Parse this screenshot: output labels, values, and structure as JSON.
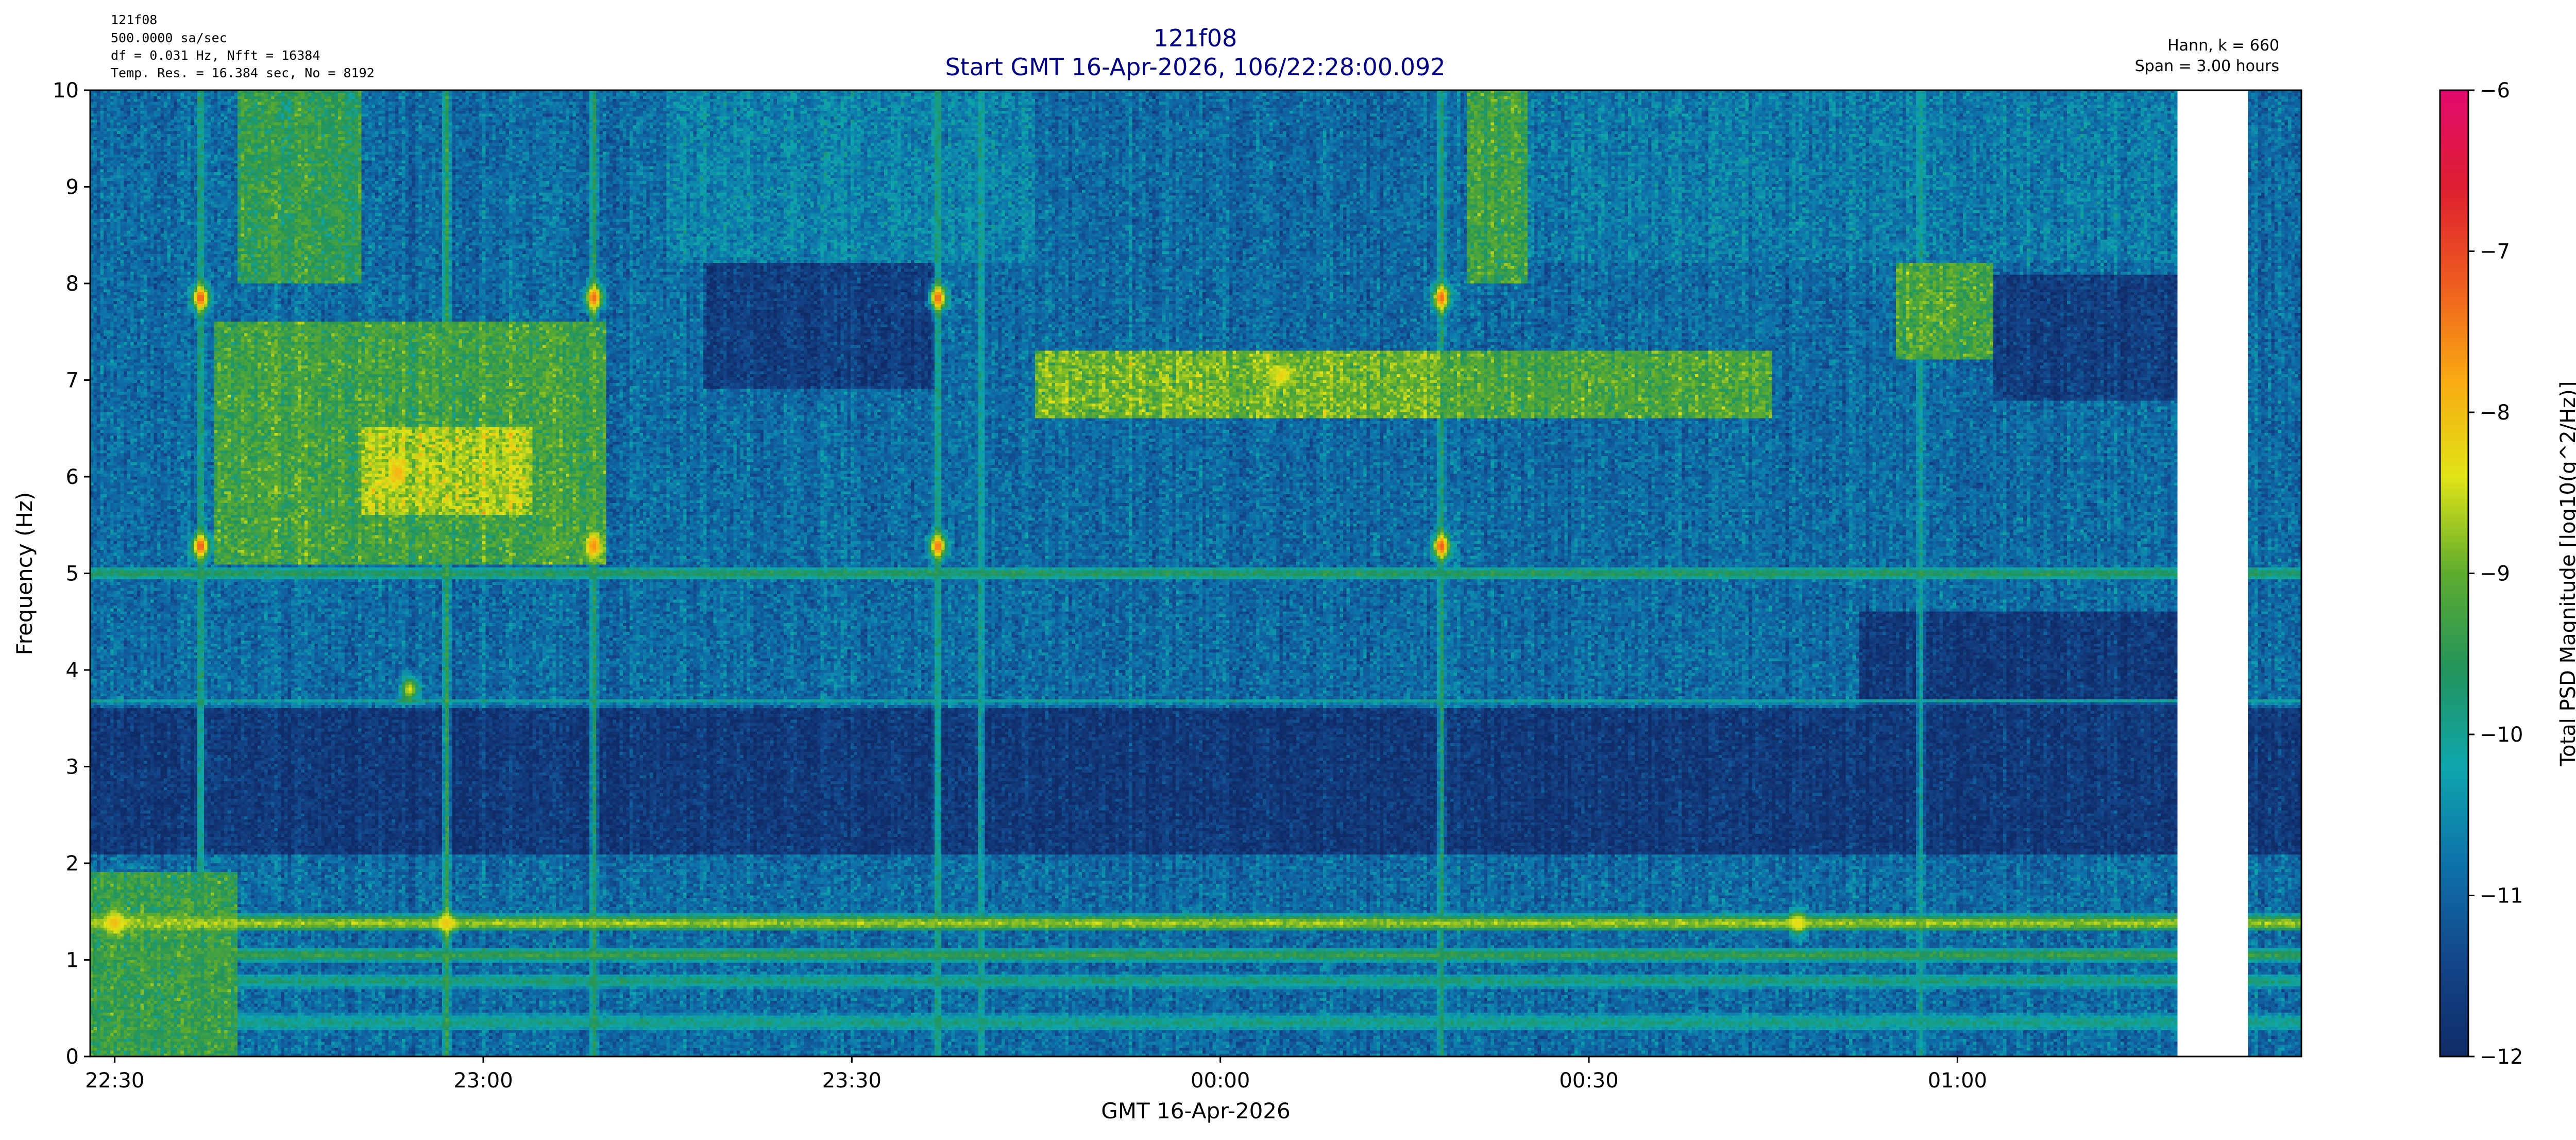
{
  "header": {
    "info_lines": [
      "121f08",
      "500.0000 sa/sec",
      "df = 0.031 Hz,  Nfft = 16384",
      "Temp. Res. = 16.384 sec, No = 8192"
    ],
    "title_line1": "121f08",
    "title_line2": "Start GMT 16-Apr-2026, 106/22:28:00.092",
    "right_line1": "Hann, k = 660",
    "right_line2": "Span = 3.00 hours"
  },
  "colors": {
    "title": "#000080",
    "text": "#000000",
    "gap": "#ffffff"
  },
  "chart_data": {
    "type": "heatmap",
    "title": "121f08",
    "subtitle": "Start GMT 16-Apr-2026, 106/22:28:00.092",
    "xlabel": "GMT 16-Apr-2026",
    "ylabel": "Frequency (Hz)",
    "x_ticks": [
      {
        "time": "22:30",
        "label": "22:30"
      },
      {
        "time": "23:00",
        "label": "23:00"
      },
      {
        "time": "23:30",
        "label": "23:30"
      },
      {
        "time": "00:00",
        "label": "00:00"
      },
      {
        "time": "00:30",
        "label": "00:30"
      },
      {
        "time": "01:00",
        "label": "01:00"
      }
    ],
    "xlim": [
      "22:28:00",
      "01:28:00"
    ],
    "ylim": [
      0,
      10
    ],
    "y_ticks": [
      0,
      1,
      2,
      3,
      4,
      5,
      6,
      7,
      8,
      9,
      10
    ],
    "colorbar": {
      "label": "Total PSD Magnitude [log10(g^2/Hz)]",
      "range": [
        -12,
        -6
      ],
      "ticks": [
        -12,
        -11,
        -10,
        -9,
        -8,
        -7,
        -6
      ]
    },
    "data_gap": {
      "start": "01:18:00",
      "end": "01:23:30"
    },
    "background_level": -10.9,
    "time_bins": 660,
    "freq_bins": 330,
    "seed": 1234,
    "horizontal_features": [
      {
        "freq": 1.38,
        "width": 0.06,
        "value": -8.7,
        "start": "22:28:00",
        "end": "01:28:00"
      },
      {
        "freq": 1.05,
        "width": 0.05,
        "value": -9.4,
        "start": "22:28:00",
        "end": "01:28:00"
      },
      {
        "freq": 0.78,
        "width": 0.05,
        "value": -9.8,
        "start": "22:28:00",
        "end": "01:28:00"
      },
      {
        "freq": 0.35,
        "width": 0.06,
        "value": -9.9,
        "start": "22:28:00",
        "end": "01:28:00"
      },
      {
        "freq": 3.68,
        "width": 0.02,
        "value": -10.1,
        "start": "22:28:00",
        "end": "01:28:00"
      },
      {
        "freq": 5.0,
        "width": 0.05,
        "value": -9.6,
        "start": "22:28:00",
        "end": "01:28:00"
      }
    ],
    "regions": [
      {
        "start": "22:28:00",
        "end": "01:28:00",
        "f_lo": 2.1,
        "f_hi": 3.6,
        "value": -11.7
      },
      {
        "start": "23:18:00",
        "end": "23:37:00",
        "f_lo": 6.9,
        "f_hi": 8.2,
        "value": -11.6
      },
      {
        "start": "01:03:00",
        "end": "01:18:00",
        "f_lo": 6.8,
        "f_hi": 8.1,
        "value": -11.6
      },
      {
        "start": "00:52:00",
        "end": "01:18:00",
        "f_lo": 3.6,
        "f_hi": 4.6,
        "value": -11.7
      },
      {
        "start": "22:28:00",
        "end": "22:40:00",
        "f_lo": 0.0,
        "f_hi": 1.9,
        "value": -9.4
      },
      {
        "start": "22:38:00",
        "end": "23:10:00",
        "f_lo": 5.1,
        "f_hi": 7.6,
        "value": -9.3
      },
      {
        "start": "22:40:00",
        "end": "22:50:00",
        "f_lo": 8.0,
        "f_hi": 10.0,
        "value": -9.5
      },
      {
        "start": "22:50:00",
        "end": "23:04:00",
        "f_lo": 5.6,
        "f_hi": 6.5,
        "value": -8.6
      },
      {
        "start": "23:45:00",
        "end": "00:20:00",
        "f_lo": 6.6,
        "f_hi": 7.3,
        "value": -8.9
      },
      {
        "start": "00:18:00",
        "end": "00:45:00",
        "f_lo": 6.6,
        "f_hi": 7.3,
        "value": -9.2
      },
      {
        "start": "00:20:00",
        "end": "00:25:00",
        "f_lo": 8.0,
        "f_hi": 10.0,
        "value": -9.3
      },
      {
        "start": "00:55:00",
        "end": "01:03:00",
        "f_lo": 7.2,
        "f_hi": 8.2,
        "value": -9.2
      },
      {
        "start": "23:15:00",
        "end": "23:45:00",
        "f_lo": 8.2,
        "f_hi": 10.0,
        "value": -10.6
      },
      {
        "start": "00:25:00",
        "end": "01:18:00",
        "f_lo": 8.2,
        "f_hi": 10.0,
        "value": -10.7
      }
    ],
    "vertical_transients": [
      {
        "time": "22:37:00",
        "value": -9.6
      },
      {
        "time": "22:57:00",
        "value": -9.4
      },
      {
        "time": "23:09:00",
        "value": -9.6
      },
      {
        "time": "23:37:00",
        "value": -9.7
      },
      {
        "time": "23:40:30",
        "value": -9.9
      },
      {
        "time": "00:18:00",
        "value": -9.7
      },
      {
        "time": "00:57:00",
        "value": -10.0
      }
    ],
    "spots": [
      {
        "time": "22:37:00",
        "freq": 7.85,
        "value": -7.2
      },
      {
        "time": "22:37:00",
        "freq": 5.28,
        "value": -7.2
      },
      {
        "time": "23:09:00",
        "freq": 7.85,
        "value": -7.3
      },
      {
        "time": "23:09:00",
        "freq": 5.28,
        "value": -7.6
      },
      {
        "time": "23:37:00",
        "freq": 7.85,
        "value": -7.3
      },
      {
        "time": "23:37:00",
        "freq": 5.28,
        "value": -7.4
      },
      {
        "time": "00:18:00",
        "freq": 7.85,
        "value": -7.3
      },
      {
        "time": "00:18:00",
        "freq": 5.28,
        "value": -7.2
      },
      {
        "time": "22:53:00",
        "freq": 6.05,
        "value": -7.9
      },
      {
        "time": "22:57:00",
        "freq": 1.38,
        "value": -8.1
      },
      {
        "time": "22:30:00",
        "freq": 1.38,
        "value": -8.0
      },
      {
        "time": "00:05:00",
        "freq": 7.05,
        "value": -8.2
      },
      {
        "time": "22:54:00",
        "freq": 3.8,
        "value": -8.4
      },
      {
        "time": "00:47:00",
        "freq": 1.38,
        "value": -8.3
      }
    ]
  }
}
